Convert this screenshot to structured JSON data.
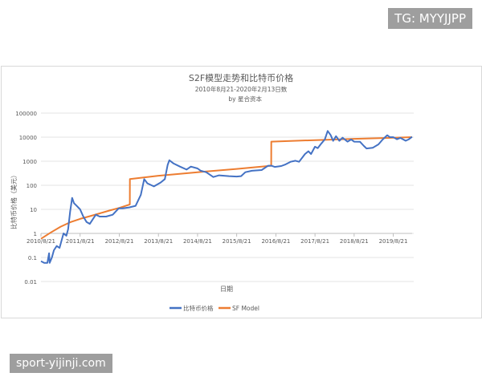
{
  "watermarks": {
    "top_right": "TG: MYYJJPP",
    "bottom_left": "sport-yijinji.com"
  },
  "chart_data": {
    "type": "line",
    "title": "S2F模型走势和比特币价格",
    "subtitle": "2010年8月21-2020年2月13日数",
    "credit": "by 星合资本",
    "xlabel": "日期",
    "ylabel": "比特币价格（美元）",
    "y_scale": "log",
    "ylim": [
      0.01,
      100000
    ],
    "y_ticks": [
      "100000",
      "10000",
      "1000",
      "100",
      "10",
      "1",
      "0.1",
      "0.01"
    ],
    "y_tick_values": [
      100000,
      10000,
      1000,
      100,
      10,
      1,
      0.1,
      0.01
    ],
    "x_range": [
      "2010-08-21",
      "2020-02-13"
    ],
    "x_ticks": [
      "2010/8/21",
      "2011/8/21",
      "2012/8/21",
      "2013/8/21",
      "2014/8/21",
      "2015/8/21",
      "2016/8/21",
      "2017/8/21",
      "2018/8/21",
      "2019/8/21"
    ],
    "x_tick_dates": [
      "2010-08-21",
      "2011-08-21",
      "2012-08-21",
      "2013-08-21",
      "2014-08-21",
      "2015-08-21",
      "2016-08-21",
      "2017-08-21",
      "2018-08-21",
      "2019-08-21"
    ],
    "grid": true,
    "legend": "bottom",
    "series": [
      {
        "name": "比特币价格",
        "color": "#4472c4",
        "points": [
          [
            "2010-08-21",
            0.07
          ],
          [
            "2010-09-20",
            0.06
          ],
          [
            "2010-10-20",
            0.06
          ],
          [
            "2010-11-05",
            0.15
          ],
          [
            "2010-11-10",
            0.06
          ],
          [
            "2010-12-01",
            0.1
          ],
          [
            "2010-12-20",
            0.2
          ],
          [
            "2011-01-15",
            0.3
          ],
          [
            "2011-02-10",
            0.25
          ],
          [
            "2011-03-01",
            0.5
          ],
          [
            "2011-03-20",
            1.0
          ],
          [
            "2011-04-15",
            0.8
          ],
          [
            "2011-05-01",
            1.5
          ],
          [
            "2011-05-20",
            8
          ],
          [
            "2011-06-08",
            30
          ],
          [
            "2011-06-25",
            18
          ],
          [
            "2011-07-20",
            14
          ],
          [
            "2011-08-21",
            10
          ],
          [
            "2011-09-20",
            5
          ],
          [
            "2011-10-20",
            3
          ],
          [
            "2011-11-20",
            2.5
          ],
          [
            "2011-12-20",
            4
          ],
          [
            "2012-01-15",
            6
          ],
          [
            "2012-02-20",
            5
          ],
          [
            "2012-04-20",
            5
          ],
          [
            "2012-06-20",
            6
          ],
          [
            "2012-08-15",
            11
          ],
          [
            "2012-09-20",
            11
          ],
          [
            "2012-11-20",
            12
          ],
          [
            "2013-01-20",
            14
          ],
          [
            "2013-03-10",
            40
          ],
          [
            "2013-04-10",
            180
          ],
          [
            "2013-05-10",
            120
          ],
          [
            "2013-07-10",
            90
          ],
          [
            "2013-09-10",
            130
          ],
          [
            "2013-10-20",
            180
          ],
          [
            "2013-11-15",
            700
          ],
          [
            "2013-12-01",
            1100
          ],
          [
            "2014-01-10",
            800
          ],
          [
            "2014-03-10",
            600
          ],
          [
            "2014-05-10",
            450
          ],
          [
            "2014-06-20",
            600
          ],
          [
            "2014-08-21",
            500
          ],
          [
            "2014-09-20",
            400
          ],
          [
            "2014-11-10",
            350
          ],
          [
            "2015-01-15",
            220
          ],
          [
            "2015-03-10",
            260
          ],
          [
            "2015-06-10",
            240
          ],
          [
            "2015-08-21",
            230
          ],
          [
            "2015-10-01",
            240
          ],
          [
            "2015-11-10",
            350
          ],
          [
            "2016-01-10",
            400
          ],
          [
            "2016-04-10",
            430
          ],
          [
            "2016-06-10",
            650
          ],
          [
            "2016-07-10",
            650
          ],
          [
            "2016-08-10",
            580
          ],
          [
            "2016-10-10",
            630
          ],
          [
            "2016-11-20",
            740
          ],
          [
            "2017-01-05",
            950
          ],
          [
            "2017-02-20",
            1050
          ],
          [
            "2017-03-25",
            950
          ],
          [
            "2017-05-20",
            2000
          ],
          [
            "2017-06-20",
            2600
          ],
          [
            "2017-07-15",
            2000
          ],
          [
            "2017-08-21",
            4000
          ],
          [
            "2017-09-15",
            3500
          ],
          [
            "2017-10-20",
            5500
          ],
          [
            "2017-11-20",
            8000
          ],
          [
            "2017-12-17",
            18000
          ],
          [
            "2018-01-15",
            12000
          ],
          [
            "2018-02-06",
            7000
          ],
          [
            "2018-03-05",
            11000
          ],
          [
            "2018-04-05",
            7000
          ],
          [
            "2018-05-05",
            9500
          ],
          [
            "2018-06-20",
            6500
          ],
          [
            "2018-07-25",
            8000
          ],
          [
            "2018-08-21",
            6500
          ],
          [
            "2018-10-15",
            6400
          ],
          [
            "2018-11-20",
            4300
          ],
          [
            "2018-12-15",
            3400
          ],
          [
            "2019-02-10",
            3600
          ],
          [
            "2019-04-05",
            5000
          ],
          [
            "2019-05-15",
            8000
          ],
          [
            "2019-06-26",
            12000
          ],
          [
            "2019-07-20",
            10000
          ],
          [
            "2019-08-21",
            10000
          ],
          [
            "2019-09-25",
            8200
          ],
          [
            "2019-10-26",
            9300
          ],
          [
            "2019-12-15",
            7100
          ],
          [
            "2020-01-10",
            8000
          ],
          [
            "2020-02-13",
            10300
          ]
        ]
      },
      {
        "name": "SF Model",
        "color": "#ed7d31",
        "points": [
          [
            "2010-08-21",
            0.6
          ],
          [
            "2010-11-21",
            1.1
          ],
          [
            "2011-02-21",
            1.9
          ],
          [
            "2011-05-21",
            2.9
          ],
          [
            "2011-08-21",
            4.0
          ],
          [
            "2011-11-21",
            5.2
          ],
          [
            "2012-02-21",
            6.8
          ],
          [
            "2012-05-21",
            8.9
          ],
          [
            "2012-08-21",
            11.5
          ],
          [
            "2012-11-27",
            16
          ],
          [
            "2012-11-28",
            180
          ],
          [
            "2013-08-21",
            250
          ],
          [
            "2014-08-21",
            350
          ],
          [
            "2015-08-21",
            480
          ],
          [
            "2016-07-08",
            650
          ],
          [
            "2016-07-09",
            6500
          ],
          [
            "2017-08-21",
            7500
          ],
          [
            "2018-08-21",
            8500
          ],
          [
            "2019-08-21",
            9500
          ],
          [
            "2020-02-13",
            10000
          ]
        ]
      }
    ]
  }
}
